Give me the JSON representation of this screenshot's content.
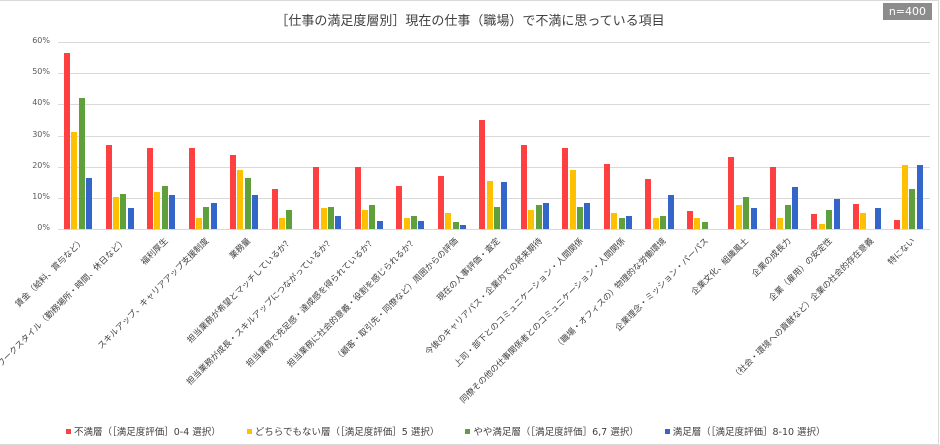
{
  "badge": "n=400",
  "chart_data": {
    "type": "bar",
    "title": "［仕事の満足度層別］現在の仕事（職場）で不満に思っている項目",
    "xlabel": "",
    "ylabel": "",
    "ylim": [
      0,
      60
    ],
    "yticks": [
      "0%",
      "10%",
      "20%",
      "30%",
      "40%",
      "50%",
      "60%"
    ],
    "grid": true,
    "legend_position": "bottom",
    "categories": [
      "賃金（給料、賞与など）",
      "ワークスタイル（勤務場所・時間、休日など）",
      "福利厚生",
      "スキルアップ、キャリアアップ支援制度",
      "業務量",
      "担当業務が希望とマッチしているか？",
      "担当業務が成長・スキルアップにつながっているか？",
      "担当業務で充足感・達成感を得られているか？",
      "担当業務に社会的意義・役割を感じられるか？",
      "（顧客・取引先・同僚など）周囲からの評価",
      "現在の人事評価・査定",
      "今後のキャリアパス・企業内での将来期待",
      "上司・部下とのコミュニケーション・人間関係",
      "同僚その他の仕事関係者とのコミュニケーション・人間関係",
      "（職場・オフィスの）物理的な労働環境",
      "企業理念・ミッション・パーパス",
      "企業文化、組織風土",
      "企業の成長力",
      "企業（雇用）の安定性",
      "（社会・環境への貢献など）企業の社会的存在意義",
      "特にない"
    ],
    "series": [
      {
        "name": "不満層（［満足度評価］0-4 選択）",
        "color": "#ff4040",
        "values": [
          56.4,
          27.0,
          25.9,
          25.9,
          23.9,
          12.8,
          19.9,
          19.9,
          13.9,
          16.9,
          35.1,
          27.0,
          25.9,
          20.9,
          16.0,
          5.7,
          23.1,
          19.9,
          4.8,
          8.0,
          2.9
        ]
      },
      {
        "name": "どちらでもない層（［満足度評価］5 選択）",
        "color": "#ffc000",
        "values": [
          31.2,
          10.3,
          11.8,
          3.4,
          18.8,
          3.4,
          6.7,
          6.1,
          3.4,
          5.1,
          15.4,
          6.1,
          18.8,
          5.1,
          3.4,
          3.4,
          7.7,
          3.4,
          1.6,
          5.1,
          20.6
        ]
      },
      {
        "name": "やや満足層（［満足度評価］6,7 選択）",
        "color": "#5fa03c",
        "values": [
          41.9,
          11.2,
          13.8,
          6.9,
          16.4,
          6.0,
          6.9,
          7.7,
          4.1,
          2.4,
          6.9,
          7.7,
          6.9,
          3.4,
          4.1,
          2.4,
          10.3,
          7.7,
          6.0,
          0,
          12.9
        ]
      },
      {
        "name": "満足層（［満足度評価］8-10 選択）",
        "color": "#3465c8",
        "values": [
          16.5,
          6.7,
          11.0,
          8.2,
          11.0,
          0,
          4.1,
          2.7,
          2.7,
          1.3,
          15.0,
          8.2,
          8.2,
          4.1,
          11.0,
          0,
          6.7,
          13.6,
          9.6,
          6.7,
          20.6
        ]
      }
    ]
  }
}
